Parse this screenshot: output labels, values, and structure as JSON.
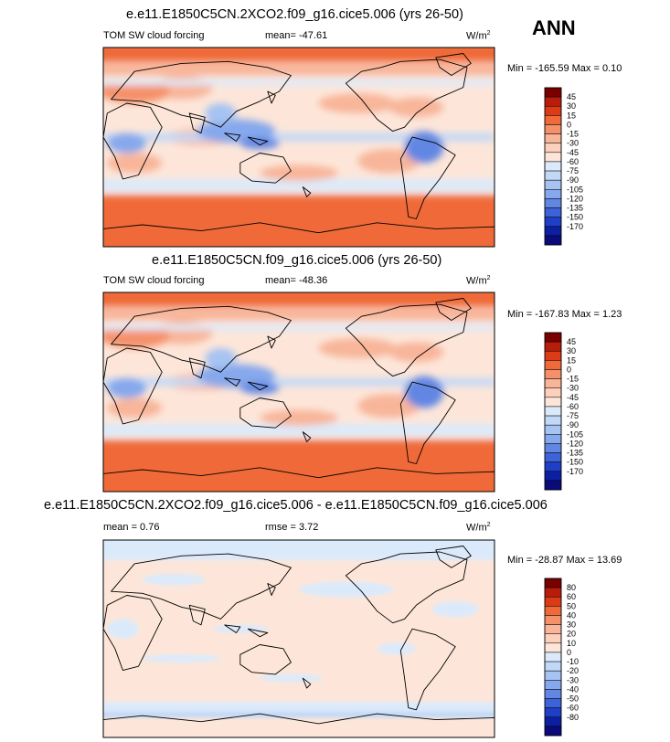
{
  "season": "ANN",
  "color_stops": [
    "#7a0000",
    "#b81d0c",
    "#dd3a16",
    "#ef6a38",
    "#f5916a",
    "#f8b59a",
    "#fbd0bd",
    "#fde6d9",
    "#dbeafb",
    "#c2d8f7",
    "#a6c3f2",
    "#86a8ec",
    "#6287e3",
    "#3d63d9",
    "#1f3fc6",
    "#0c1fa0",
    "#0a0a7a"
  ],
  "panels": [
    {
      "id": "p1",
      "title": "e.e11.E1850C5CN.2XCO2.f09_g16.cice5.006 (yrs 26-50)",
      "left_label": "TOM SW cloud forcing",
      "center_label": "mean= -47.61",
      "units": "W/m",
      "units_sup": "2",
      "minmax": "Min = -165.59 Max =   0.10",
      "colorbar_labels": [
        "45",
        "30",
        "15",
        "0",
        "-15",
        "-30",
        "-45",
        "-60",
        "-75",
        "-90",
        "-105",
        "-120",
        "-135",
        "-150",
        "-170"
      ]
    },
    {
      "id": "p2",
      "title": "e.e11.E1850C5CN.f09_g16.cice5.006 (yrs 26-50)",
      "left_label": "TOM SW cloud forcing",
      "center_label": "mean= -48.36",
      "units": "W/m",
      "units_sup": "2",
      "minmax": "Min = -167.83 Max =   1.23",
      "colorbar_labels": [
        "45",
        "30",
        "15",
        "0",
        "-15",
        "-30",
        "-45",
        "-60",
        "-75",
        "-90",
        "-105",
        "-120",
        "-135",
        "-150",
        "-170"
      ]
    },
    {
      "id": "p3",
      "title": "e.e11.E1850C5CN.2XCO2.f09_g16.cice5.006 - e.e11.E1850C5CN.f09_g16.cice5.006",
      "left_label": "mean =   0.76",
      "center_label": "rmse =   3.72",
      "units": "W/m",
      "units_sup": "2",
      "minmax": "Min = -28.87 Max = 13.69",
      "colorbar_labels": [
        "80",
        "60",
        "50",
        "40",
        "30",
        "20",
        "10",
        "0",
        "-10",
        "-20",
        "-30",
        "-40",
        "-50",
        "-60",
        "-80"
      ]
    }
  ],
  "chart_data": [
    {
      "type": "heatmap",
      "title": "e.e11.E1850C5CN.2XCO2.f09_g16.cice5.006 (yrs 26-50)",
      "variable": "TOM SW cloud forcing",
      "units": "W/m2",
      "mean": -47.61,
      "min": -165.59,
      "max": 0.1,
      "contour_levels": [
        45,
        30,
        15,
        0,
        -15,
        -30,
        -45,
        -60,
        -75,
        -90,
        -105,
        -120,
        -135,
        -150,
        -170
      ]
    },
    {
      "type": "heatmap",
      "title": "e.e11.E1850C5CN.f09_g16.cice5.006 (yrs 26-50)",
      "variable": "TOM SW cloud forcing",
      "units": "W/m2",
      "mean": -48.36,
      "min": -167.83,
      "max": 1.23,
      "contour_levels": [
        45,
        30,
        15,
        0,
        -15,
        -30,
        -45,
        -60,
        -75,
        -90,
        -105,
        -120,
        -135,
        -150,
        -170
      ]
    },
    {
      "type": "heatmap",
      "title": "e.e11.E1850C5CN.2XCO2.f09_g16.cice5.006 - e.e11.E1850C5CN.f09_g16.cice5.006",
      "variable": "difference",
      "units": "W/m2",
      "mean": 0.76,
      "rmse": 3.72,
      "min": -28.87,
      "max": 13.69,
      "contour_levels": [
        80,
        60,
        50,
        40,
        30,
        20,
        10,
        0,
        -10,
        -20,
        -30,
        -40,
        -50,
        -60,
        -80
      ]
    }
  ]
}
